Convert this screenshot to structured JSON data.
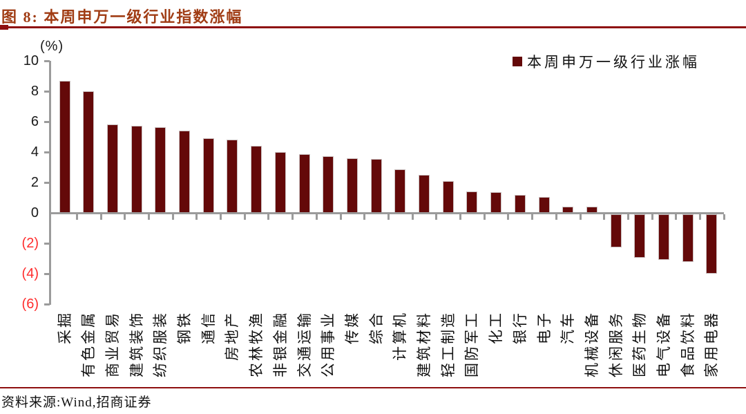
{
  "header": {
    "title": "图 8: 本周申万一级行业指数涨幅"
  },
  "legend": {
    "label": "本周申万一级行业涨幅"
  },
  "footer": {
    "source": "资料来源:Wind,招商证券"
  },
  "colors": {
    "bar": "#640909",
    "accent_line": "#8e0f0f",
    "title_text": "#a03c14",
    "axis": "#9b9b9b",
    "negative_tick": "#ff2d2d"
  },
  "chart_data": {
    "type": "bar",
    "title": "本周申万一级行业指数涨幅",
    "unit_label": "(%)",
    "xlabel": "",
    "ylabel": "%",
    "ylim": [
      -6,
      10
    ],
    "grid": false,
    "legend_position": "top-right",
    "legend_entries": [
      "本周申万一级行业涨幅"
    ],
    "yticks": [
      {
        "label": "10",
        "value": 10
      },
      {
        "label": "8",
        "value": 8
      },
      {
        "label": "6",
        "value": 6
      },
      {
        "label": "4",
        "value": 4
      },
      {
        "label": "2",
        "value": 2
      },
      {
        "label": "0",
        "value": 0
      },
      {
        "label": "(2)",
        "value": -2
      },
      {
        "label": "(4)",
        "value": -4
      },
      {
        "label": "(6)",
        "value": -6
      }
    ],
    "categories": [
      "采掘",
      "有色金属",
      "商业贸易",
      "建筑装饰",
      "纺织服装",
      "钢铁",
      "通信",
      "房地产",
      "农林牧渔",
      "非银金融",
      "交通运输",
      "公用事业",
      "传媒",
      "综合",
      "计算机",
      "建筑材料",
      "轻工制造",
      "国防军工",
      "化工",
      "银行",
      "电子",
      "汽车",
      "机械设备",
      "休闲服务",
      "医药生物",
      "电气设备",
      "食品饮料",
      "家用电器"
    ],
    "values": [
      8.7,
      8.0,
      5.8,
      5.75,
      5.65,
      5.4,
      4.9,
      4.8,
      4.4,
      4.0,
      3.85,
      3.75,
      3.6,
      3.55,
      2.85,
      2.5,
      2.1,
      1.4,
      1.35,
      1.2,
      1.05,
      0.4,
      0.4,
      -2.2,
      -2.85,
      -3.0,
      -3.15,
      -3.9
    ]
  }
}
